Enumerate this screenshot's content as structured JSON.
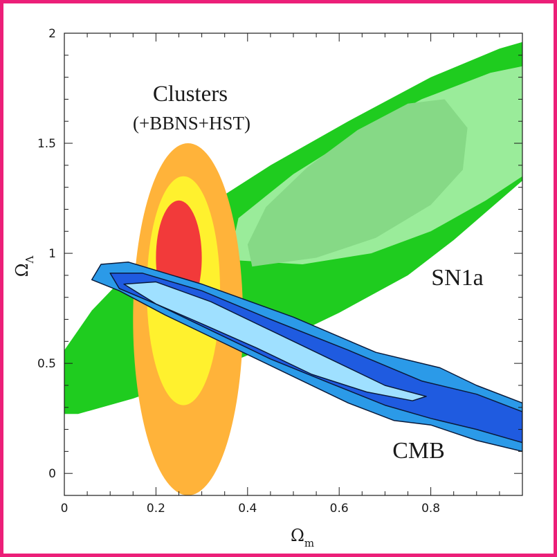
{
  "chart_data": {
    "type": "contour",
    "xlabel": {
      "symbol": "Ω",
      "subscript": "m"
    },
    "ylabel": {
      "symbol": "Ω",
      "subscript": "Λ"
    },
    "xlim": [
      0,
      1.0
    ],
    "ylim": [
      -0.1,
      2.0
    ],
    "x_ticks": [
      "0",
      "0.2",
      "0.4",
      "0.6",
      "0.8"
    ],
    "x_tick_values": [
      0,
      0.2,
      0.4,
      0.6,
      0.8
    ],
    "y_ticks": [
      "0",
      "0.5",
      "1",
      "1.5",
      "2"
    ],
    "y_tick_values": [
      0,
      0.5,
      1,
      1.5,
      2
    ],
    "grid": false,
    "annotations": {
      "clusters_line1": "Clusters",
      "clusters_line2": "(+BBNS+HST)",
      "sn1a": "SN1a",
      "cmb": "CMB"
    },
    "series": [
      {
        "name": "SN1a",
        "levels": [
          {
            "color": "#1fcc1f",
            "polygon": [
              [
                0,
                0.27
              ],
              [
                0.03,
                0.27
              ],
              [
                0.15,
                0.34
              ],
              [
                0.3,
                0.45
              ],
              [
                0.45,
                0.58
              ],
              [
                0.6,
                0.73
              ],
              [
                0.75,
                0.9
              ],
              [
                0.85,
                1.06
              ],
              [
                0.95,
                1.24
              ],
              [
                1.0,
                1.33
              ],
              [
                1.0,
                1.96
              ],
              [
                0.95,
                1.93
              ],
              [
                0.8,
                1.8
              ],
              [
                0.62,
                1.6
              ],
              [
                0.45,
                1.4
              ],
              [
                0.3,
                1.2
              ],
              [
                0.18,
                1.0
              ],
              [
                0.06,
                0.74
              ],
              [
                0,
                0.56
              ]
            ]
          },
          {
            "color": "#9aec9a",
            "polygon": [
              [
                0.36,
                0.97
              ],
              [
                0.52,
                0.95
              ],
              [
                0.67,
                1.0
              ],
              [
                0.8,
                1.1
              ],
              [
                0.92,
                1.24
              ],
              [
                1.0,
                1.35
              ],
              [
                1.0,
                1.85
              ],
              [
                0.93,
                1.82
              ],
              [
                0.78,
                1.7
              ],
              [
                0.63,
                1.53
              ],
              [
                0.5,
                1.36
              ],
              [
                0.38,
                1.16
              ]
            ]
          },
          {
            "color": "#86d986",
            "polygon": [
              [
                0.41,
                0.94
              ],
              [
                0.55,
                0.98
              ],
              [
                0.68,
                1.07
              ],
              [
                0.8,
                1.22
              ],
              [
                0.87,
                1.38
              ],
              [
                0.88,
                1.57
              ],
              [
                0.83,
                1.7
              ],
              [
                0.75,
                1.68
              ],
              [
                0.64,
                1.56
              ],
              [
                0.53,
                1.39
              ],
              [
                0.44,
                1.21
              ],
              [
                0.4,
                1.04
              ]
            ]
          }
        ]
      },
      {
        "name": "Clusters",
        "levels": [
          {
            "color": "#ffb33a",
            "center": [
              0.27,
              0.7
            ],
            "radii": [
              0.12,
              0.8
            ]
          },
          {
            "color": "#fff12e",
            "center": [
              0.26,
              0.83
            ],
            "radii": [
              0.08,
              0.52
            ]
          },
          {
            "color": "#f23a3a",
            "center": [
              0.25,
              0.98
            ],
            "radii": [
              0.05,
              0.26
            ]
          }
        ]
      },
      {
        "name": "CMB",
        "levels": [
          {
            "color": "#2b9ae8",
            "polygon": [
              [
                0.08,
                0.95
              ],
              [
                0.14,
                0.96
              ],
              [
                0.3,
                0.86
              ],
              [
                0.5,
                0.71
              ],
              [
                0.68,
                0.55
              ],
              [
                0.82,
                0.48
              ],
              [
                0.9,
                0.4
              ],
              [
                1.0,
                0.32
              ],
              [
                1.0,
                0.1
              ],
              [
                0.9,
                0.15
              ],
              [
                0.8,
                0.22
              ],
              [
                0.72,
                0.24
              ],
              [
                0.62,
                0.32
              ],
              [
                0.48,
                0.46
              ],
              [
                0.35,
                0.59
              ],
              [
                0.22,
                0.72
              ],
              [
                0.12,
                0.83
              ],
              [
                0.06,
                0.88
              ]
            ]
          },
          {
            "color": "#1f5be0",
            "polygon": [
              [
                0.1,
                0.91
              ],
              [
                0.17,
                0.91
              ],
              [
                0.3,
                0.83
              ],
              [
                0.45,
                0.7
              ],
              [
                0.62,
                0.56
              ],
              [
                0.78,
                0.42
              ],
              [
                0.9,
                0.36
              ],
              [
                1.0,
                0.28
              ],
              [
                1.0,
                0.14
              ],
              [
                0.9,
                0.2
              ],
              [
                0.8,
                0.25
              ],
              [
                0.7,
                0.31
              ],
              [
                0.58,
                0.41
              ],
              [
                0.45,
                0.52
              ],
              [
                0.32,
                0.65
              ],
              [
                0.2,
                0.77
              ],
              [
                0.12,
                0.84
              ]
            ]
          },
          {
            "color": "#9fe0ff",
            "polygon": [
              [
                0.13,
                0.86
              ],
              [
                0.2,
                0.87
              ],
              [
                0.32,
                0.78
              ],
              [
                0.46,
                0.64
              ],
              [
                0.58,
                0.52
              ],
              [
                0.7,
                0.4
              ],
              [
                0.79,
                0.35
              ],
              [
                0.76,
                0.33
              ],
              [
                0.66,
                0.37
              ],
              [
                0.54,
                0.45
              ],
              [
                0.42,
                0.57
              ],
              [
                0.3,
                0.68
              ],
              [
                0.2,
                0.77
              ]
            ]
          }
        ]
      }
    ]
  }
}
